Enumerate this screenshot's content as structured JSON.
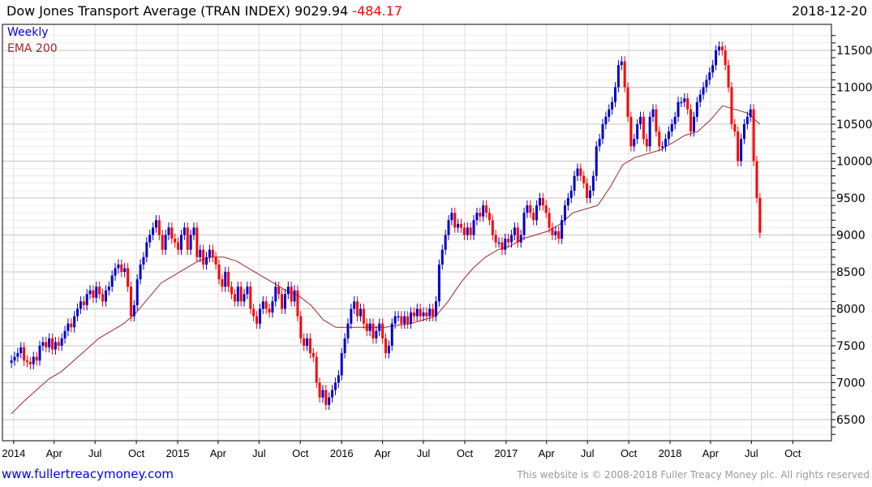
{
  "header": {
    "title": "Dow Jones Transport Average (TRAN INDEX)",
    "last": "9029.94",
    "change": "-484.17",
    "date": "2018-12-20"
  },
  "legend": {
    "period": "Weekly",
    "indicator": "EMA 200"
  },
  "footer": {
    "link": "www.fullertreacymoney.com",
    "copyright": "This website is © 2008-2018 Fuller Treacy Money plc. All rights reserved"
  },
  "colors": {
    "up": "#0000cc",
    "down": "#ff0000",
    "ema": "#a02828",
    "change": "#ff0000"
  },
  "chart_data": {
    "type": "candlestick",
    "title": "Dow Jones Transport Average (TRAN INDEX)",
    "frequency": "weekly",
    "start_week": "2013-12-27",
    "ylim": [
      6200,
      11750
    ],
    "y_ticks": [
      6500,
      7000,
      7500,
      8000,
      8500,
      9000,
      9500,
      10000,
      10500,
      11000,
      11500
    ],
    "x_ticks": [
      {
        "label": "2014",
        "date": "2014-01-01"
      },
      {
        "label": "Apr",
        "date": "2014-04-01"
      },
      {
        "label": "Jul",
        "date": "2014-07-01"
      },
      {
        "label": "Oct",
        "date": "2014-10-01"
      },
      {
        "label": "2015",
        "date": "2015-01-01"
      },
      {
        "label": "Apr",
        "date": "2015-04-01"
      },
      {
        "label": "Jul",
        "date": "2015-07-01"
      },
      {
        "label": "Oct",
        "date": "2015-10-01"
      },
      {
        "label": "2016",
        "date": "2016-01-01"
      },
      {
        "label": "Apr",
        "date": "2016-04-01"
      },
      {
        "label": "Jul",
        "date": "2016-07-01"
      },
      {
        "label": "Oct",
        "date": "2016-10-01"
      },
      {
        "label": "2017",
        "date": "2017-01-01"
      },
      {
        "label": "Apr",
        "date": "2017-04-01"
      },
      {
        "label": "Jul",
        "date": "2017-07-01"
      },
      {
        "label": "Oct",
        "date": "2017-10-01"
      },
      {
        "label": "2018",
        "date": "2018-01-01"
      },
      {
        "label": "Apr",
        "date": "2018-04-01"
      },
      {
        "label": "Jul",
        "date": "2018-07-01"
      },
      {
        "label": "Oct",
        "date": "2018-10-01"
      }
    ],
    "close": [
      7300,
      7350,
      7400,
      7480,
      7300,
      7280,
      7250,
      7350,
      7300,
      7500,
      7550,
      7480,
      7600,
      7450,
      7550,
      7500,
      7600,
      7700,
      7800,
      7750,
      7900,
      8000,
      8100,
      8050,
      8200,
      8250,
      8150,
      8300,
      8200,
      8100,
      8250,
      8300,
      8450,
      8550,
      8600,
      8500,
      8550,
      8300,
      7900,
      8050,
      8400,
      8600,
      8700,
      8900,
      9000,
      9100,
      9200,
      9000,
      8800,
      9000,
      9100,
      8950,
      8900,
      8800,
      9000,
      9100,
      8800,
      9000,
      9100,
      8700,
      8800,
      8600,
      8700,
      8800,
      8700,
      8600,
      8400,
      8300,
      8500,
      8300,
      8200,
      8100,
      8300,
      8100,
      8200,
      8300,
      8000,
      7900,
      7800,
      8000,
      8100,
      8000,
      7950,
      8100,
      8300,
      8200,
      8000,
      8200,
      8300,
      8100,
      8250,
      7900,
      7600,
      7500,
      7600,
      7400,
      7350,
      7000,
      6800,
      6900,
      6700,
      6800,
      6900,
      7000,
      7100,
      7400,
      7600,
      7800,
      8000,
      8100,
      7900,
      8000,
      7800,
      7700,
      7800,
      7600,
      7700,
      7800,
      7600,
      7400,
      7500,
      7800,
      7900,
      7900,
      7800,
      7900,
      7800,
      7950,
      7900,
      8000,
      7900,
      7950,
      7900,
      8000,
      7900,
      8100,
      8600,
      8800,
      9000,
      9200,
      9300,
      9100,
      9150,
      9100,
      9000,
      9100,
      9000,
      9200,
      9300,
      9250,
      9400,
      9300,
      9200,
      9000,
      8900,
      8900,
      8800,
      8950,
      8900,
      9000,
      9100,
      8900,
      9000,
      9300,
      9400,
      9300,
      9200,
      9400,
      9500,
      9400,
      9300,
      9100,
      9000,
      9050,
      8950,
      9200,
      9400,
      9500,
      9600,
      9800,
      9900,
      9800,
      9700,
      9500,
      9600,
      9800,
      10200,
      10300,
      10500,
      10600,
      10700,
      10800,
      11000,
      11300,
      11350,
      11000,
      10600,
      10200,
      10300,
      10500,
      10600,
      10300,
      10200,
      10600,
      10700,
      10400,
      10200,
      10200,
      10300,
      10400,
      10500,
      10600,
      10800,
      10800,
      10850,
      10700,
      10400,
      10600,
      10800,
      10900,
      11000,
      11100,
      11200,
      11300,
      11500,
      11550,
      11500,
      11300,
      11000,
      10500,
      10400,
      10000,
      10300,
      10500,
      10600,
      10700,
      10000,
      9500,
      9030
    ],
    "ema_200": [
      6580,
      6750,
      6900,
      7050,
      7150,
      7300,
      7450,
      7600,
      7700,
      7800,
      7950,
      8150,
      8350,
      8450,
      8550,
      8650,
      8700,
      8700,
      8650,
      8550,
      8450,
      8350,
      8250,
      8180,
      8050,
      7850,
      7750,
      7750,
      7750,
      7750,
      7750,
      7780,
      7800,
      7850,
      7900,
      8100,
      8350,
      8550,
      8700,
      8800,
      8850,
      8950,
      9000,
      9050,
      9150,
      9300,
      9350,
      9400,
      9650,
      9950,
      10050,
      10100,
      10150,
      10250,
      10350,
      10400,
      10550,
      10750,
      10700,
      10650,
      10500
    ]
  }
}
